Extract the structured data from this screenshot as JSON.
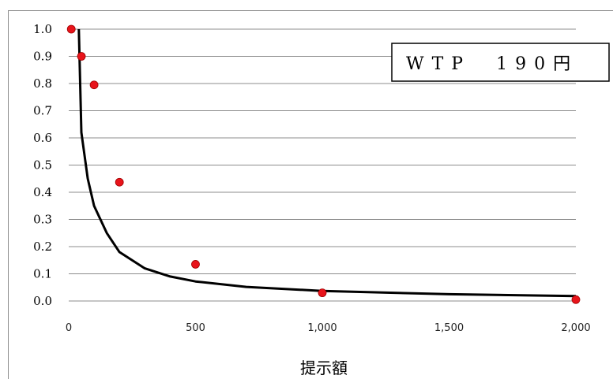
{
  "chart_data": {
    "type": "scatter",
    "title": "",
    "xlabel": "提示額",
    "ylabel": "",
    "xlim": [
      0,
      2000
    ],
    "ylim": [
      0,
      1.0
    ],
    "x_ticks": [
      "0",
      "500",
      "1,000",
      "1,500",
      "2,000"
    ],
    "y_ticks": [
      "0.0",
      "0.1",
      "0.2",
      "0.3",
      "0.4",
      "0.5",
      "0.6",
      "0.7",
      "0.8",
      "0.9",
      "1.0"
    ],
    "grid": "horizontal",
    "annotation": "WTP　190円",
    "series": [
      {
        "type": "scatter",
        "color": "#e8141b",
        "points": [
          {
            "x": 10,
            "y": 1.0
          },
          {
            "x": 50,
            "y": 0.9
          },
          {
            "x": 100,
            "y": 0.795
          },
          {
            "x": 200,
            "y": 0.437
          },
          {
            "x": 500,
            "y": 0.135
          },
          {
            "x": 1000,
            "y": 0.03
          },
          {
            "x": 2000,
            "y": 0.005
          }
        ]
      },
      {
        "type": "line",
        "color": "#000000",
        "points": [
          {
            "x": 40,
            "y": 1.0
          },
          {
            "x": 50,
            "y": 0.62
          },
          {
            "x": 75,
            "y": 0.45
          },
          {
            "x": 100,
            "y": 0.35
          },
          {
            "x": 150,
            "y": 0.25
          },
          {
            "x": 200,
            "y": 0.18
          },
          {
            "x": 300,
            "y": 0.12
          },
          {
            "x": 400,
            "y": 0.09
          },
          {
            "x": 500,
            "y": 0.072
          },
          {
            "x": 700,
            "y": 0.052
          },
          {
            "x": 1000,
            "y": 0.037
          },
          {
            "x": 1500,
            "y": 0.025
          },
          {
            "x": 2000,
            "y": 0.018
          }
        ]
      }
    ]
  }
}
